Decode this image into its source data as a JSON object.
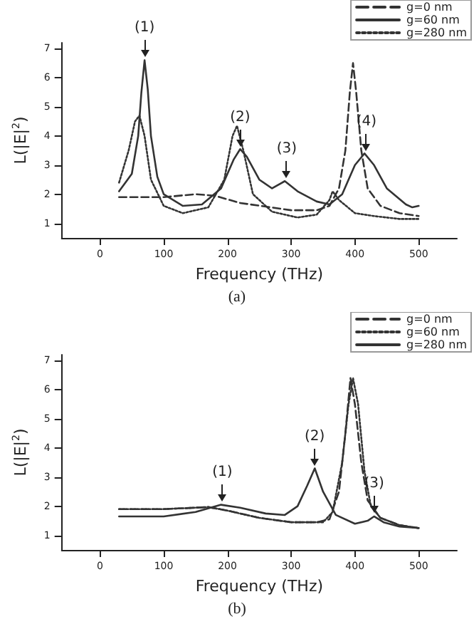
{
  "chart_data": [
    {
      "type": "line",
      "xlabel": "Frequency (THz)",
      "ylabel": "L(|E|$^{2}$)",
      "xlim": [
        -60,
        560
      ],
      "ylim": [
        0.5,
        7.2
      ],
      "xticks": [
        0,
        100,
        200,
        300,
        400,
        500
      ],
      "yticks": [
        1,
        2,
        3,
        4,
        5,
        6,
        7
      ],
      "grid": false,
      "legend": "top right",
      "marker": "none",
      "series": [
        {
          "name": "g=0 nm",
          "color": "#333333",
          "line_style": "dashed",
          "x": [
            30,
            100,
            150,
            180,
            220,
            300,
            340,
            360,
            375,
            385,
            392,
            397,
            402,
            410,
            420,
            440,
            470,
            500
          ],
          "values": [
            1.9,
            1.9,
            2.0,
            1.95,
            1.7,
            1.45,
            1.45,
            1.6,
            2.2,
            3.5,
            5.5,
            6.5,
            5.5,
            3.5,
            2.2,
            1.6,
            1.35,
            1.25
          ]
        },
        {
          "name": "g=60 nm",
          "color": "#333333",
          "line_style": "solid",
          "x": [
            30,
            50,
            60,
            65,
            70,
            75,
            80,
            90,
            100,
            130,
            160,
            190,
            210,
            220,
            230,
            250,
            270,
            290,
            310,
            340,
            360,
            380,
            400,
            415,
            430,
            450,
            480,
            490,
            500
          ],
          "values": [
            2.1,
            2.7,
            4.0,
            5.5,
            6.6,
            5.6,
            4.0,
            2.6,
            2.0,
            1.6,
            1.65,
            2.2,
            3.2,
            3.55,
            3.3,
            2.5,
            2.2,
            2.45,
            2.1,
            1.75,
            1.65,
            2.0,
            3.0,
            3.4,
            3.0,
            2.2,
            1.65,
            1.55,
            1.6
          ]
        },
        {
          "name": "g=280 nm",
          "color": "#333333",
          "line_style": "dotted",
          "x": [
            30,
            45,
            55,
            62,
            70,
            80,
            100,
            130,
            170,
            195,
            208,
            215,
            225,
            240,
            270,
            310,
            340,
            360,
            365,
            375,
            400,
            430,
            470,
            500
          ],
          "values": [
            2.4,
            3.5,
            4.5,
            4.7,
            4.0,
            2.5,
            1.6,
            1.35,
            1.55,
            2.5,
            4.0,
            4.35,
            3.5,
            2.0,
            1.4,
            1.2,
            1.3,
            1.8,
            2.1,
            1.8,
            1.35,
            1.25,
            1.15,
            1.15
          ]
        }
      ],
      "annotations": [
        {
          "text": "(1)",
          "x": 70,
          "y": 6.6
        },
        {
          "text": "(2)",
          "x": 220,
          "y": 3.55
        },
        {
          "text": "(3)",
          "x": 293,
          "y": 2.45
        },
        {
          "text": "(4)",
          "x": 418,
          "y": 3.4
        },
        "(a)"
      ]
    },
    {
      "type": "line",
      "xlabel": "Frequency (THz)",
      "ylabel": "L(|E|$^{2}$)",
      "xlim": [
        -60,
        560
      ],
      "ylim": [
        0.5,
        7.2
      ],
      "xticks": [
        0,
        100,
        200,
        300,
        400,
        500
      ],
      "yticks": [
        1,
        2,
        3,
        4,
        5,
        6,
        7
      ],
      "grid": false,
      "legend": "top right",
      "marker": "none",
      "series": [
        {
          "name": "g=0 nm",
          "color": "#333333",
          "line_style": "dashed",
          "x": [
            30,
            100,
            170,
            200,
            250,
            300,
            340,
            360,
            375,
            385,
            393,
            400,
            410,
            420,
            440,
            470,
            500
          ],
          "values": [
            1.9,
            1.9,
            1.97,
            1.85,
            1.6,
            1.45,
            1.45,
            1.55,
            2.5,
            4.5,
            6.4,
            5.5,
            3.5,
            2.2,
            1.6,
            1.35,
            1.25
          ]
        },
        {
          "name": "g=60 nm",
          "color": "#333333",
          "line_style": "dotted",
          "x": [
            30,
            100,
            170,
            200,
            250,
            300,
            340,
            350,
            365,
            380,
            390,
            397,
            405,
            415,
            425,
            440,
            470,
            500
          ],
          "values": [
            1.9,
            1.9,
            1.97,
            1.85,
            1.6,
            1.45,
            1.45,
            1.45,
            1.8,
            3.5,
            5.5,
            6.4,
            5.5,
            3.2,
            2.0,
            1.6,
            1.35,
            1.25
          ]
        },
        {
          "name": "g=280 nm",
          "color": "#333333",
          "line_style": "solid",
          "x": [
            30,
            100,
            150,
            190,
            220,
            260,
            290,
            310,
            325,
            337,
            350,
            370,
            400,
            420,
            430,
            445,
            470,
            500
          ],
          "values": [
            1.65,
            1.65,
            1.8,
            2.05,
            1.95,
            1.75,
            1.7,
            2.0,
            2.7,
            3.3,
            2.5,
            1.7,
            1.4,
            1.5,
            1.65,
            1.45,
            1.3,
            1.25
          ]
        }
      ],
      "annotations": [
        {
          "text": "(1)",
          "x": 192,
          "y": 2.05
        },
        {
          "text": "(2)",
          "x": 337,
          "y": 3.3
        },
        {
          "text": "(3)",
          "x": 430,
          "y": 1.65
        },
        "(b)"
      ]
    }
  ]
}
